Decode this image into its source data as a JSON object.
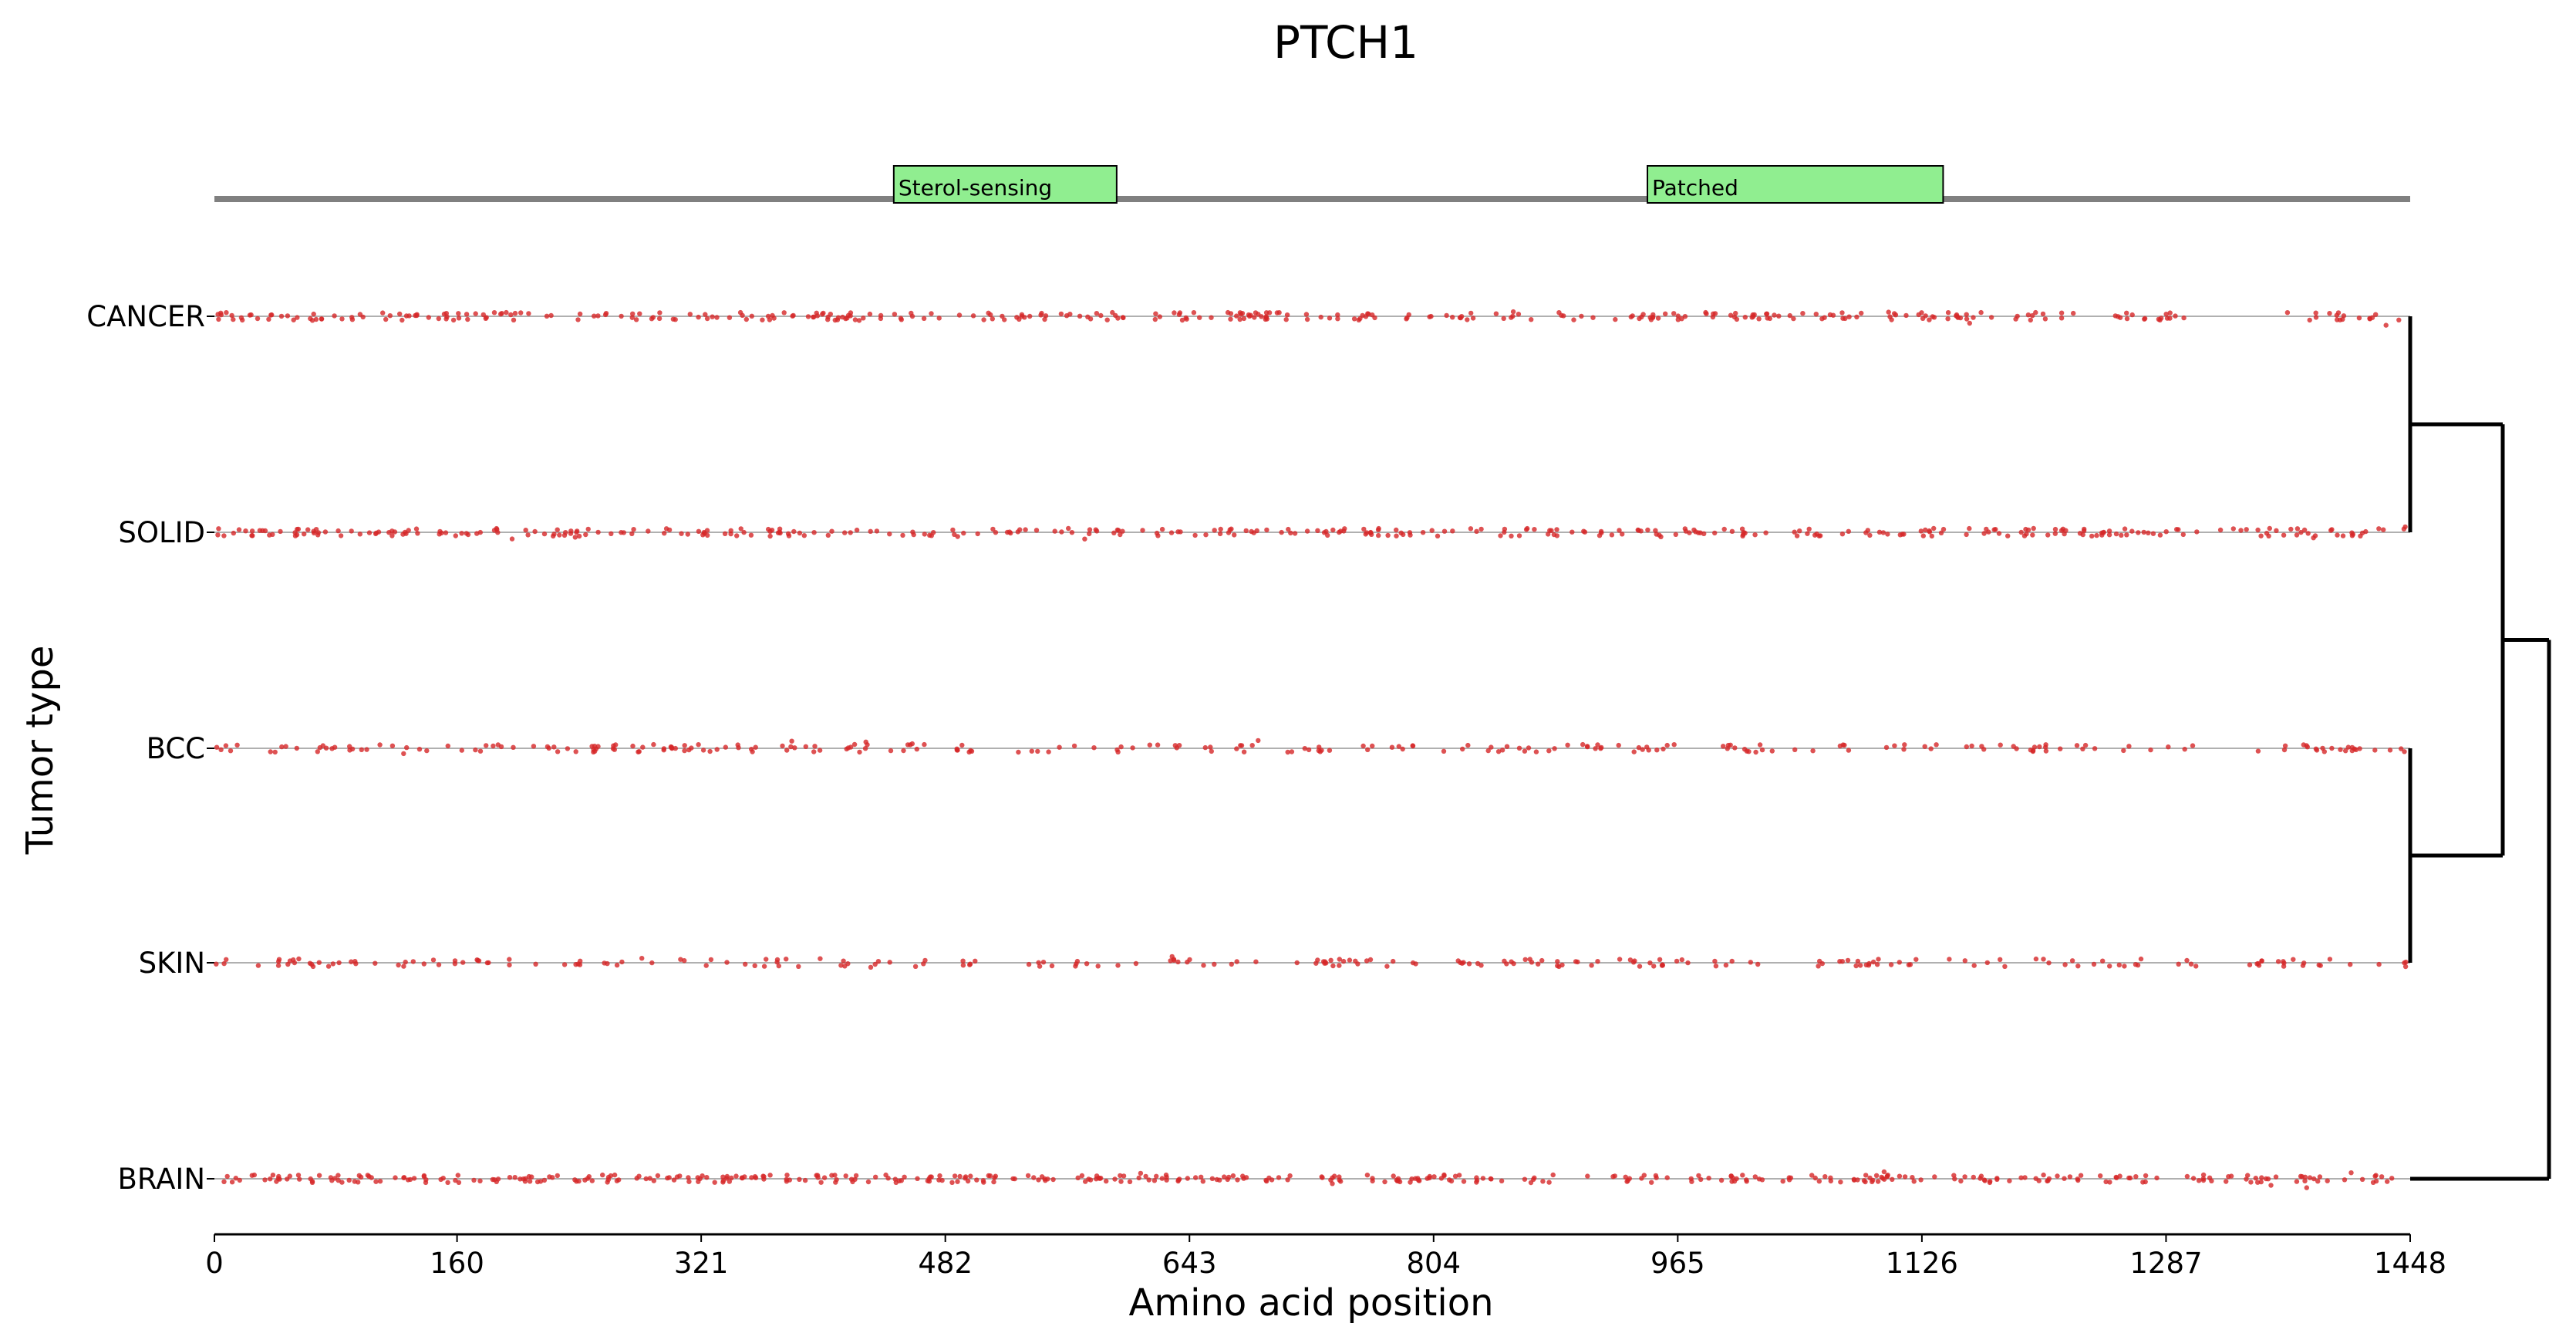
{
  "chart_data": {
    "type": "scatter",
    "title": "PTCH1",
    "xlabel": "Amino acid position",
    "ylabel": "Tumor type",
    "xlim": [
      0,
      1448
    ],
    "xticks": [
      "0",
      "160",
      "321",
      "482",
      "643",
      "804",
      "965",
      "1126",
      "1287",
      "1448"
    ],
    "categories": [
      "CANCER",
      "SOLID",
      "BCC",
      "SKIN",
      "BRAIN"
    ],
    "protein_length": 1448,
    "domains": [
      {
        "name": "Sterol-sensing",
        "start": 448,
        "end": 595
      },
      {
        "name": "Patched",
        "start": 945,
        "end": 1140
      }
    ],
    "dendrogram": {
      "merges": [
        {
          "members": [
            "CANCER",
            "SOLID"
          ]
        },
        {
          "members": [
            "BCC",
            "SKIN"
          ]
        },
        {
          "members": [
            "CANCER",
            "SOLID",
            "BCC",
            "SKIN"
          ]
        },
        {
          "members": [
            "CANCER",
            "SOLID",
            "BCC",
            "SKIN",
            "BRAIN"
          ]
        }
      ]
    },
    "series": [
      {
        "name": "CANCER",
        "density": 0.85,
        "gaps": [
          [
            600,
            620
          ],
          [
            912,
            920
          ],
          [
            1310,
            1360
          ]
        ]
      },
      {
        "name": "SOLID",
        "density": 0.85,
        "gaps": [
          [
            1310,
            1320
          ]
        ]
      },
      {
        "name": "BCC",
        "density": 0.6,
        "gaps": [
          [
            505,
            530
          ],
          [
            583,
            595
          ],
          [
            1310,
            1340
          ]
        ]
      },
      {
        "name": "SKIN",
        "density": 0.55,
        "gaps": [
          [
            505,
            520
          ],
          [
            1310,
            1340
          ]
        ]
      },
      {
        "name": "BRAIN",
        "density": 1.0,
        "gaps": [
          [
            1290,
            1300
          ]
        ]
      }
    ],
    "colors": {
      "point": "#d62728",
      "track": "#b0b0b0",
      "domain_fill": "#90ee90",
      "backbone": "#808080"
    }
  }
}
